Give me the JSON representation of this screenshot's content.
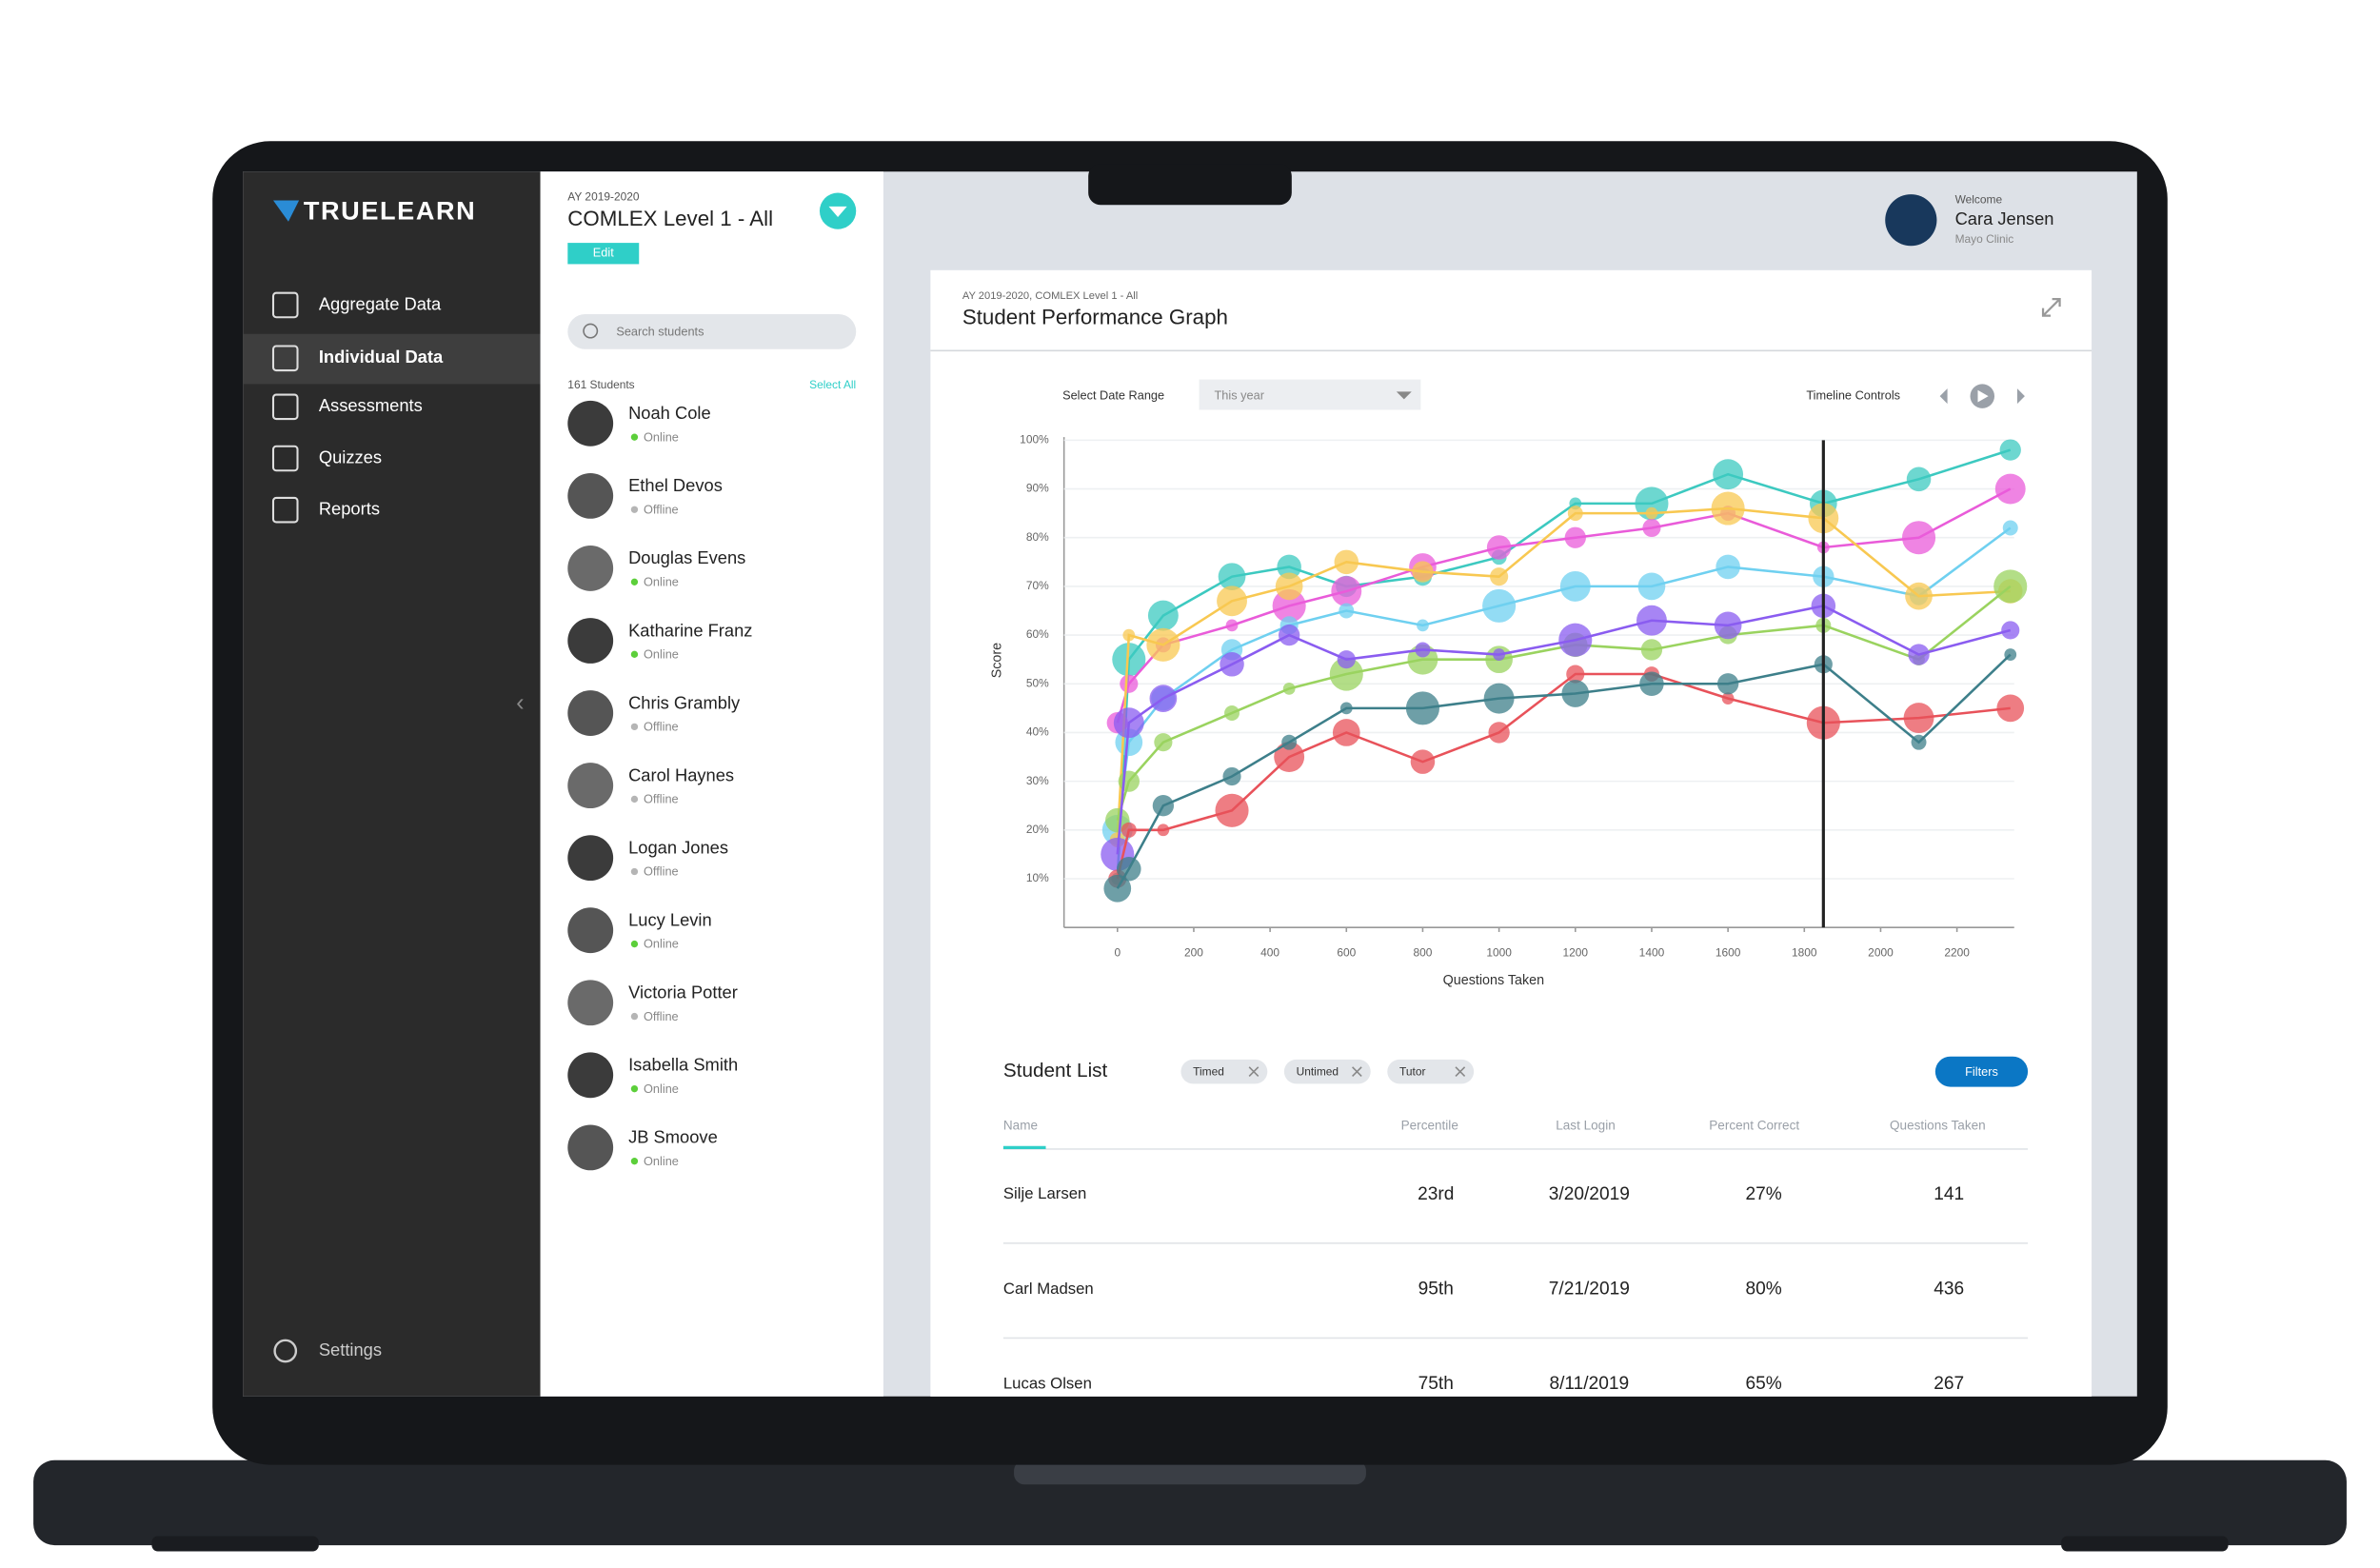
{
  "sidebar": {
    "logo": "TRUELEARN",
    "nav": [
      "Aggregate Data",
      "Individual Data",
      "Assessments",
      "Quizzes",
      "Reports"
    ],
    "settings": "Settings"
  },
  "panel": {
    "year": "AY 2019-2020",
    "program": "COMLEX Level 1 - All",
    "edit": "Edit",
    "search": "Search students",
    "count": "161 Students",
    "select_all": "Select All",
    "students": [
      {
        "name": "Noah Cole",
        "status": "Online",
        "status_color": "#5ccf3a"
      },
      {
        "name": "Ethel Devos",
        "status": "Offline",
        "status_color": "#b5b5b5"
      },
      {
        "name": "Douglas Evens",
        "status": "Online",
        "status_color": "#5ccf3a"
      },
      {
        "name": "Katharine Franz",
        "status": "Online",
        "status_color": "#5ccf3a"
      },
      {
        "name": "Chris Grambly",
        "status": "Offline",
        "status_color": "#b5b5b5"
      },
      {
        "name": "Carol Haynes",
        "status": "Offline",
        "status_color": "#b5b5b5"
      },
      {
        "name": "Logan Jones",
        "status": "Offline",
        "status_color": "#b5b5b5"
      },
      {
        "name": "Lucy Levin",
        "status": "Online",
        "status_color": "#5ccf3a"
      },
      {
        "name": "Victoria Potter",
        "status": "Offline",
        "status_color": "#b5b5b5"
      },
      {
        "name": "Isabella Smith",
        "status": "Online",
        "status_color": "#5ccf3a"
      },
      {
        "name": "JB Smoove",
        "status": "Online",
        "status_color": "#5ccf3a"
      }
    ]
  },
  "header": {
    "welcome": "Welcome",
    "name": "Cara Jensen",
    "org": "Mayo Clinic"
  },
  "card": {
    "subtitle": "AY 2019-2020, COMLEX Level 1 - All",
    "title": "Student Performance Graph",
    "date_range_label": "Select Date Range",
    "date_range_value": "This year",
    "timeline_label": "Timeline Controls"
  },
  "chart_data": {
    "type": "line",
    "x_label": "Questions Taken",
    "y_label": "Score",
    "x": [
      0,
      30,
      120,
      300,
      450,
      600,
      800,
      1000,
      1200,
      1400,
      1600,
      1850,
      2100,
      2340
    ],
    "xlim": [
      -140,
      2350
    ],
    "ylim": [
      0,
      100
    ],
    "xticks": [
      0,
      200,
      400,
      600,
      800,
      1000,
      1200,
      1400,
      1600,
      1800,
      2000,
      2200
    ],
    "yticks": [
      {
        "value": 10,
        "label": "10%"
      },
      {
        "value": 20,
        "label": "20%"
      },
      {
        "value": 30,
        "label": "30%"
      },
      {
        "value": 40,
        "label": "40%"
      },
      {
        "value": 50,
        "label": "50%"
      },
      {
        "value": 60,
        "label": "60%"
      },
      {
        "value": 70,
        "label": "70%"
      },
      {
        "value": 80,
        "label": "80%"
      },
      {
        "value": 90,
        "label": "90%"
      },
      {
        "value": 100,
        "label": "100%"
      }
    ],
    "marker_x": 1850,
    "series": [
      {
        "color": "#3cc9c0",
        "values": [
          10,
          55,
          64,
          72,
          74,
          70,
          72,
          76,
          87,
          87,
          93,
          87,
          92,
          98
        ]
      },
      {
        "color": "#e95bd9",
        "values": [
          42,
          50,
          58,
          62,
          66,
          69,
          74,
          78,
          80,
          82,
          85,
          78,
          80,
          90
        ]
      },
      {
        "color": "#6fd0f0",
        "values": [
          20,
          38,
          47,
          57,
          62,
          65,
          62,
          66,
          70,
          70,
          74,
          72,
          68,
          82
        ]
      },
      {
        "color": "#f8c851",
        "values": [
          18,
          60,
          58,
          67,
          70,
          75,
          73,
          72,
          85,
          85,
          86,
          84,
          68,
          69
        ]
      },
      {
        "color": "#9ad35f",
        "values": [
          22,
          30,
          38,
          44,
          49,
          52,
          55,
          55,
          58,
          57,
          60,
          62,
          55,
          70
        ]
      },
      {
        "color": "#8a5cf0",
        "values": [
          15,
          42,
          47,
          54,
          60,
          55,
          57,
          56,
          59,
          63,
          62,
          66,
          56,
          61
        ]
      },
      {
        "color": "#e8525a",
        "values": [
          10,
          20,
          20,
          24,
          35,
          40,
          34,
          40,
          52,
          52,
          47,
          42,
          43,
          45
        ]
      },
      {
        "color": "#3d7f8a",
        "values": [
          8,
          12,
          25,
          31,
          38,
          45,
          45,
          47,
          48,
          50,
          50,
          54,
          38,
          56
        ]
      }
    ]
  },
  "student_list": {
    "title": "Student List",
    "chips": [
      "Timed",
      "Untimed",
      "Tutor"
    ],
    "filters": "Filters",
    "columns": [
      "Name",
      "Percentile",
      "Last Login",
      "Percent Correct",
      "Questions Taken"
    ],
    "rows": [
      [
        "Silje Larsen",
        "23rd",
        "3/20/2019",
        "27%",
        "141"
      ],
      [
        "Carl Madsen",
        "95th",
        "7/21/2019",
        "80%",
        "436"
      ],
      [
        "Lucas Olsen",
        "75th",
        "8/11/2019",
        "65%",
        "267"
      ]
    ]
  }
}
